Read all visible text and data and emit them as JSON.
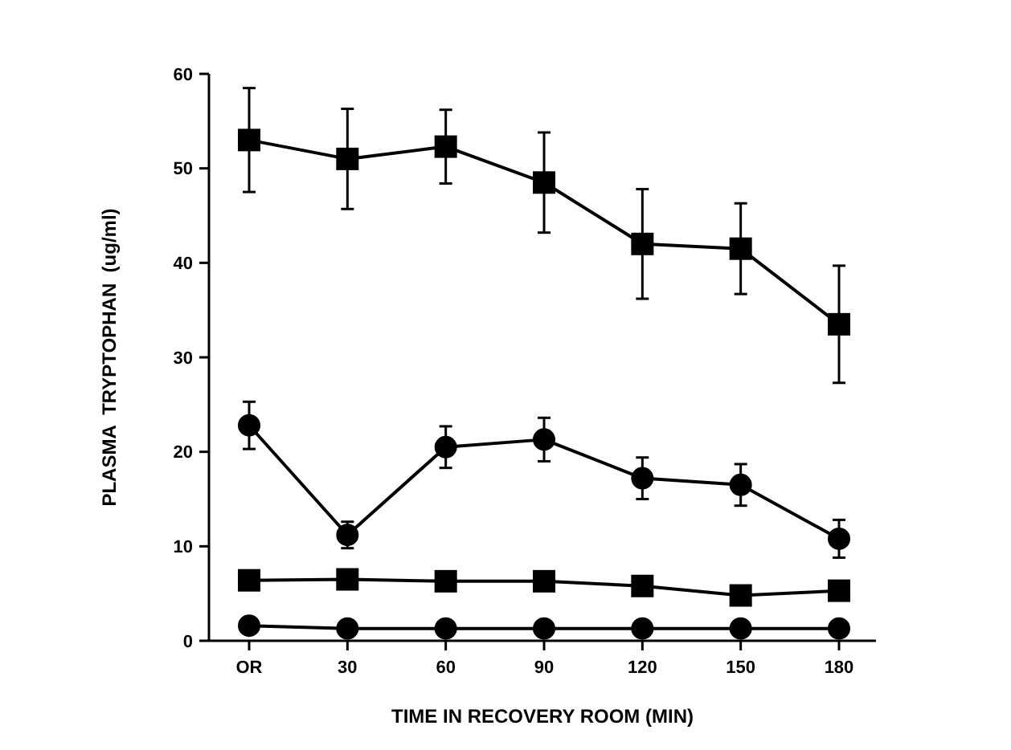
{
  "chart_data": {
    "type": "line",
    "xlabel": "TIME IN RECOVERY ROOM (MIN)",
    "ylabel": "PLASMA  TRYPTOPHAN  (ug/ml)",
    "categories": [
      "OR",
      "30",
      "60",
      "90",
      "120",
      "150",
      "180"
    ],
    "ylim": [
      0,
      60
    ],
    "yticks": [
      0,
      10,
      20,
      30,
      40,
      50,
      60
    ],
    "grid": false,
    "line_style": "solid",
    "series": [
      {
        "color": "#000000",
        "marker": "square",
        "values": [
          53,
          51,
          52.3,
          48.5,
          42,
          41.5,
          33.5
        ],
        "errors": [
          5.5,
          5.3,
          3.9,
          5.3,
          5.8,
          4.8,
          6.2
        ]
      },
      {
        "color": "#000000",
        "marker": "circle",
        "values": [
          22.8,
          11.2,
          20.5,
          21.3,
          17.2,
          16.5,
          10.8
        ],
        "errors": [
          2.5,
          1.4,
          2.2,
          2.3,
          2.2,
          2.2,
          2
        ]
      },
      {
        "color": "#000000",
        "marker": "square",
        "values": [
          6.4,
          6.5,
          6.3,
          6.3,
          5.8,
          4.8,
          5.3
        ]
      },
      {
        "color": "#000000",
        "marker": "circle",
        "values": [
          1.6,
          1.3,
          1.3,
          1.3,
          1.3,
          1.3,
          1.3
        ]
      }
    ]
  }
}
